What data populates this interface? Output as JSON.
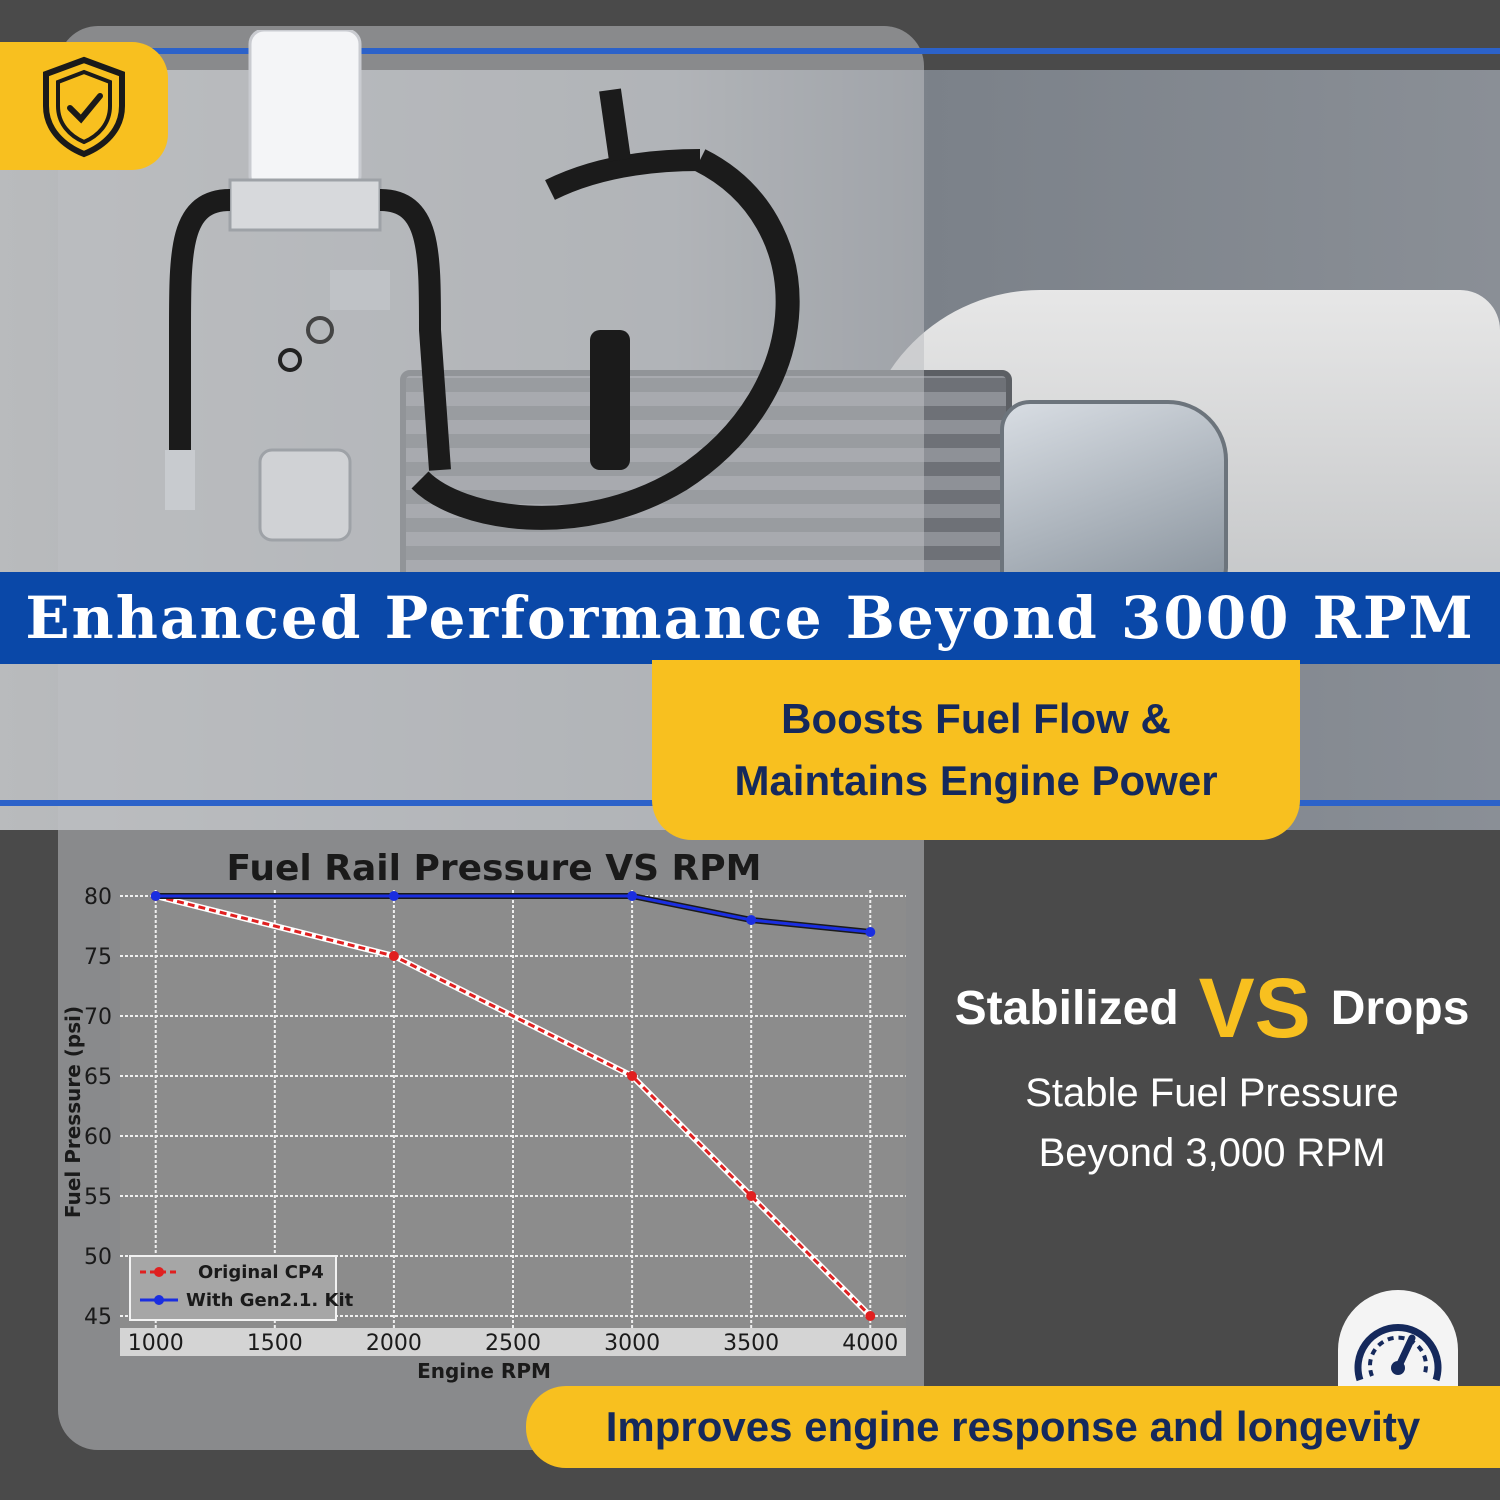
{
  "banner": {
    "title": "Enhanced Performance Beyond 3000 RPM"
  },
  "subheadline": {
    "line1": "Boosts Fuel Flow &",
    "line2": "Maintains Engine Power"
  },
  "comparison": {
    "left_word": "Stabilized",
    "vs": "VS",
    "right_word": "Drops",
    "desc_line1": "Stable Fuel Pressure",
    "desc_line2": "Beyond 3,000 RPM"
  },
  "footer": {
    "text": "Improves engine response and longevity"
  },
  "icons": {
    "badge_top": "shield-check-icon",
    "badge_bottom": "speedometer-icon"
  },
  "colors": {
    "accent": "#f8c01f",
    "banner": "#0a48a8",
    "navy_text": "#15295c",
    "series_original": "#e02020",
    "series_kit": "#1a2ee0"
  },
  "chart_data": {
    "type": "line",
    "title": "Fuel Rail Pressure VS RPM",
    "xlabel": "Engine RPM",
    "ylabel": "Fuel Pressure (psi)",
    "x": [
      1000,
      2000,
      3000,
      3500,
      4000
    ],
    "xticks": [
      1000,
      1500,
      2000,
      2500,
      3000,
      3500,
      4000
    ],
    "yticks": [
      45,
      50,
      55,
      60,
      65,
      70,
      75,
      80
    ],
    "xlim": [
      850,
      4150
    ],
    "ylim": [
      44,
      80.5
    ],
    "grid": true,
    "legend_position": "bottom-left",
    "series": [
      {
        "name": "Original CP4",
        "color": "#e02020",
        "style": "dashed",
        "values": [
          80,
          75,
          65,
          55,
          45
        ]
      },
      {
        "name": "With Gen2.1. Kit",
        "color": "#1a2ee0",
        "style": "solid",
        "values": [
          80,
          80,
          80,
          78,
          77
        ]
      }
    ]
  }
}
